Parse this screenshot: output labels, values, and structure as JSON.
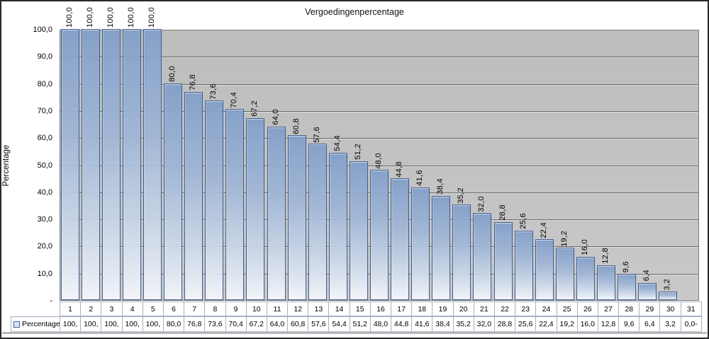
{
  "chart_data": {
    "type": "bar",
    "title": "Vergoedingenpercentage",
    "ylabel": "Percentage",
    "legend_label": "Percentage",
    "legend_position": "bottom-table-row",
    "grid": true,
    "ylim": [
      0,
      100
    ],
    "y_tick_step": 10,
    "y_tick_labels": [
      "100,0",
      "90,0",
      "80,0",
      "70,0",
      "60,0",
      "50,0",
      "40,0",
      "30,0",
      "20,0",
      "10,0",
      "-"
    ],
    "categories": [
      "1",
      "2",
      "3",
      "4",
      "5",
      "6",
      "7",
      "8",
      "9",
      "10",
      "11",
      "12",
      "13",
      "14",
      "15",
      "16",
      "17",
      "18",
      "19",
      "20",
      "21",
      "22",
      "23",
      "24",
      "25",
      "26",
      "27",
      "28",
      "29",
      "30",
      "31"
    ],
    "values": [
      100,
      100,
      100,
      100,
      100,
      80,
      76.8,
      73.6,
      70.4,
      67.2,
      64,
      60.8,
      57.6,
      54.4,
      51.2,
      48,
      44.8,
      41.6,
      38.4,
      35.2,
      32,
      28.8,
      25.6,
      22.4,
      19.2,
      16,
      12.8,
      9.6,
      6.4,
      3.2,
      0
    ],
    "bar_labels": [
      "100,0",
      "100,0",
      "100,0",
      "100,0",
      "100,0",
      "80,0",
      "76,8",
      "73,6",
      "70,4",
      "67,2",
      "64,0",
      "60,8",
      "57,6",
      "54,4",
      "51,2",
      "48,0",
      "44,8",
      "41,6",
      "38,4",
      "35,2",
      "32,0",
      "28,8",
      "25,6",
      "22,4",
      "19,2",
      "16,0",
      "12,8",
      "9,6",
      "6,4",
      "3,2",
      ""
    ],
    "table_row_values": [
      "100,",
      "100,",
      "100,",
      "100,",
      "100,",
      "80,0",
      "76,8",
      "73,6",
      "70,4",
      "67,2",
      "64,0",
      "60,8",
      "57,6",
      "54,4",
      "51,2",
      "48,0",
      "44,8",
      "41,6",
      "38,4",
      "35,2",
      "32,0",
      "28,8",
      "25,6",
      "22,4",
      "19,2",
      "16,0",
      "12,8",
      "9,6",
      "6,4",
      "3,2",
      "0,0-"
    ],
    "colors": {
      "plot_background": "#c2c2c2",
      "gridline": "#666666",
      "bar_fill_top": "#82a0c9",
      "bar_fill_bottom": "#f4f6fb",
      "bar_border": "#3f5e8e",
      "table_border": "#a8b0c4",
      "legend_swatch_border": "#44639c",
      "legend_swatch_fill": "#dbe5f2",
      "outer_border": "#2a2a2a"
    }
  }
}
